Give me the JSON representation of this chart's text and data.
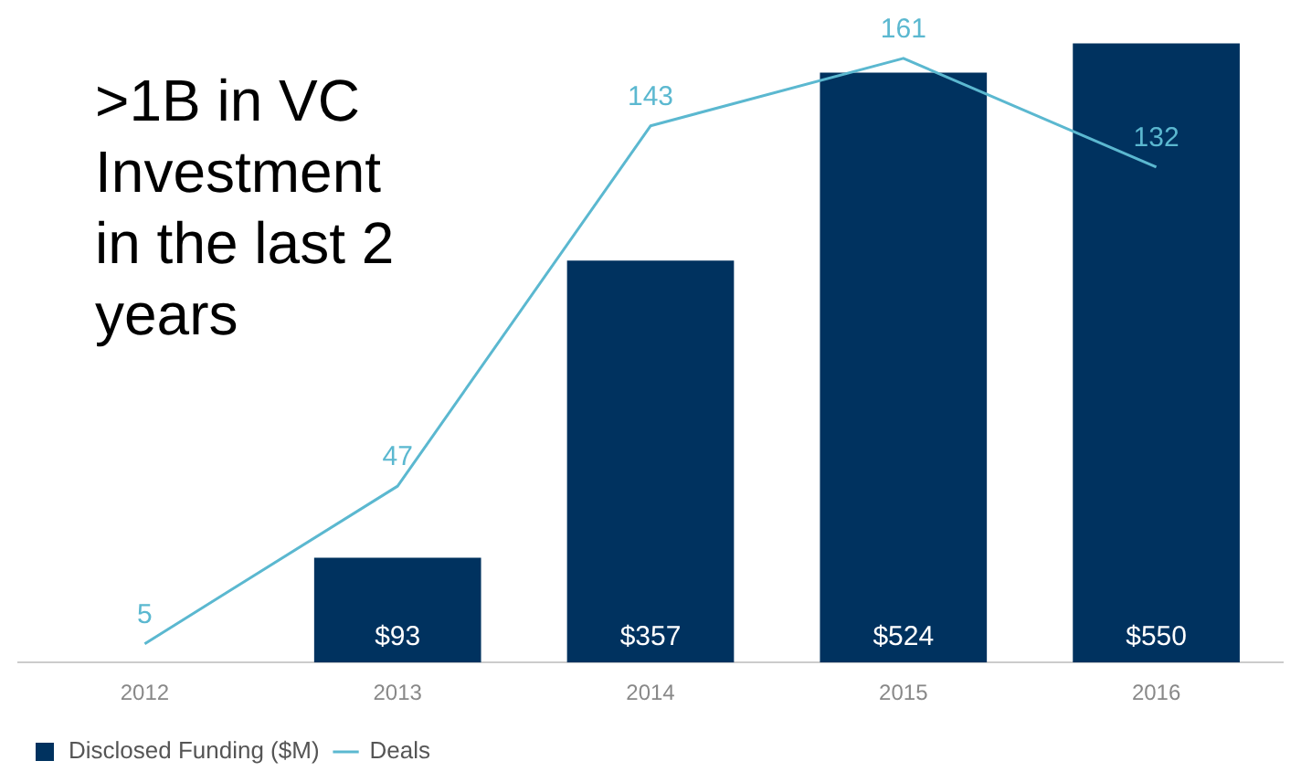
{
  "chart_data": {
    "type": "bar",
    "categories": [
      "2012",
      "2013",
      "2014",
      "2015",
      "2016"
    ],
    "series": [
      {
        "name": "Disclosed Funding ($M)",
        "color": "#00325f",
        "values": [
          null,
          93,
          357,
          524,
          550
        ],
        "value_labels": [
          null,
          "$93",
          "$357",
          "$524",
          "$550"
        ]
      },
      {
        "name": "Deals",
        "type": "line",
        "axis": "y2",
        "color": "#5bb8d0",
        "values": [
          5,
          47,
          143,
          161,
          132
        ],
        "value_labels": [
          "5",
          "47",
          "143",
          "161",
          "132"
        ]
      }
    ],
    "annotations": [
      ">1B in VC Investment in the last 2 years"
    ],
    "legend": "bottom left",
    "grid": false,
    "marker": "none"
  }
}
